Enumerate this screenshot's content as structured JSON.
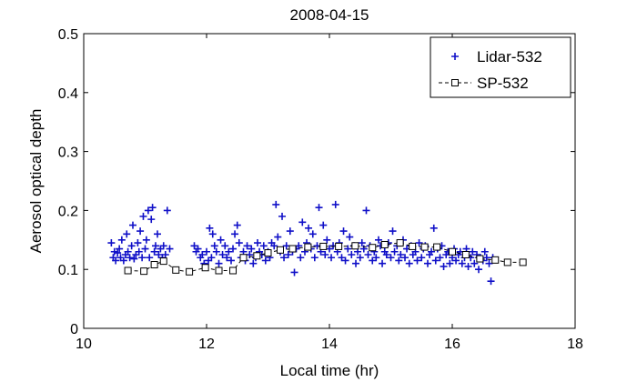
{
  "chart_data": {
    "type": "scatter",
    "title": "2008-04-15",
    "xlabel": "Local time (hr)",
    "ylabel": "Aerosol optical depth",
    "xlim": [
      10,
      18
    ],
    "ylim": [
      0,
      0.5
    ],
    "xticks": [
      10,
      12,
      14,
      16,
      18
    ],
    "yticks": [
      0,
      0.1,
      0.2,
      0.3,
      0.4,
      0.5
    ],
    "grid": false,
    "legend_position": "top-right",
    "colors": {
      "lidar": "#1010c8",
      "sp": "#000000"
    },
    "series": [
      {
        "name": "Lidar-532",
        "marker": "plus",
        "points": [
          [
            10.45,
            0.145
          ],
          [
            10.48,
            0.12
          ],
          [
            10.5,
            0.13
          ],
          [
            10.52,
            0.115
          ],
          [
            10.55,
            0.128
          ],
          [
            10.58,
            0.135
          ],
          [
            10.6,
            0.12
          ],
          [
            10.62,
            0.15
          ],
          [
            10.65,
            0.115
          ],
          [
            10.68,
            0.125
          ],
          [
            10.7,
            0.16
          ],
          [
            10.72,
            0.13
          ],
          [
            10.75,
            0.12
          ],
          [
            10.78,
            0.14
          ],
          [
            10.8,
            0.175
          ],
          [
            10.82,
            0.118
          ],
          [
            10.85,
            0.125
          ],
          [
            10.88,
            0.145
          ],
          [
            10.9,
            0.13
          ],
          [
            10.92,
            0.165
          ],
          [
            10.95,
            0.12
          ],
          [
            10.97,
            0.19
          ],
          [
            11.0,
            0.135
          ],
          [
            11.02,
            0.15
          ],
          [
            11.05,
            0.2
          ],
          [
            11.07,
            0.12
          ],
          [
            11.1,
            0.185
          ],
          [
            11.12,
            0.205
          ],
          [
            11.15,
            0.13
          ],
          [
            11.17,
            0.14
          ],
          [
            11.2,
            0.16
          ],
          [
            11.22,
            0.125
          ],
          [
            11.25,
            0.135
          ],
          [
            11.28,
            0.12
          ],
          [
            11.3,
            0.14
          ],
          [
            11.33,
            0.125
          ],
          [
            11.36,
            0.2
          ],
          [
            11.4,
            0.135
          ],
          [
            11.8,
            0.14
          ],
          [
            11.83,
            0.13
          ],
          [
            11.86,
            0.135
          ],
          [
            11.9,
            0.12
          ],
          [
            11.93,
            0.125
          ],
          [
            11.96,
            0.11
          ],
          [
            12.0,
            0.13
          ],
          [
            12.03,
            0.115
          ],
          [
            12.05,
            0.17
          ],
          [
            12.08,
            0.12
          ],
          [
            12.1,
            0.16
          ],
          [
            12.13,
            0.14
          ],
          [
            12.16,
            0.13
          ],
          [
            12.2,
            0.11
          ],
          [
            12.23,
            0.15
          ],
          [
            12.26,
            0.125
          ],
          [
            12.3,
            0.14
          ],
          [
            12.33,
            0.12
          ],
          [
            12.36,
            0.13
          ],
          [
            12.4,
            0.115
          ],
          [
            12.43,
            0.135
          ],
          [
            12.46,
            0.16
          ],
          [
            12.5,
            0.175
          ],
          [
            12.53,
            0.145
          ],
          [
            12.56,
            0.12
          ],
          [
            12.6,
            0.13
          ],
          [
            12.63,
            0.115
          ],
          [
            12.66,
            0.14
          ],
          [
            12.7,
            0.125
          ],
          [
            12.73,
            0.135
          ],
          [
            12.76,
            0.11
          ],
          [
            12.8,
            0.12
          ],
          [
            12.83,
            0.145
          ],
          [
            12.86,
            0.13
          ],
          [
            12.9,
            0.125
          ],
          [
            12.93,
            0.14
          ],
          [
            12.96,
            0.115
          ],
          [
            13.0,
            0.13
          ],
          [
            13.03,
            0.12
          ],
          [
            13.06,
            0.145
          ],
          [
            13.1,
            0.14
          ],
          [
            13.13,
            0.21
          ],
          [
            13.16,
            0.155
          ],
          [
            13.2,
            0.13
          ],
          [
            13.23,
            0.19
          ],
          [
            13.26,
            0.12
          ],
          [
            13.3,
            0.14
          ],
          [
            13.33,
            0.125
          ],
          [
            13.36,
            0.165
          ],
          [
            13.4,
            0.13
          ],
          [
            13.43,
            0.095
          ],
          [
            13.46,
            0.135
          ],
          [
            13.5,
            0.14
          ],
          [
            13.53,
            0.12
          ],
          [
            13.56,
            0.18
          ],
          [
            13.6,
            0.13
          ],
          [
            13.63,
            0.145
          ],
          [
            13.66,
            0.17
          ],
          [
            13.7,
            0.135
          ],
          [
            13.73,
            0.16
          ],
          [
            13.76,
            0.12
          ],
          [
            13.8,
            0.14
          ],
          [
            13.83,
            0.205
          ],
          [
            13.86,
            0.13
          ],
          [
            13.9,
            0.175
          ],
          [
            13.93,
            0.125
          ],
          [
            13.96,
            0.15
          ],
          [
            14.0,
            0.135
          ],
          [
            14.03,
            0.12
          ],
          [
            14.06,
            0.14
          ],
          [
            14.1,
            0.21
          ],
          [
            14.13,
            0.13
          ],
          [
            14.16,
            0.145
          ],
          [
            14.2,
            0.12
          ],
          [
            14.23,
            0.165
          ],
          [
            14.26,
            0.115
          ],
          [
            14.3,
            0.135
          ],
          [
            14.33,
            0.155
          ],
          [
            14.36,
            0.125
          ],
          [
            14.4,
            0.14
          ],
          [
            14.43,
            0.11
          ],
          [
            14.46,
            0.13
          ],
          [
            14.5,
            0.12
          ],
          [
            14.53,
            0.145
          ],
          [
            14.56,
            0.135
          ],
          [
            14.6,
            0.2
          ],
          [
            14.63,
            0.125
          ],
          [
            14.66,
            0.14
          ],
          [
            14.7,
            0.115
          ],
          [
            14.73,
            0.13
          ],
          [
            14.76,
            0.12
          ],
          [
            14.8,
            0.15
          ],
          [
            14.83,
            0.14
          ],
          [
            14.86,
            0.11
          ],
          [
            14.9,
            0.13
          ],
          [
            14.93,
            0.125
          ],
          [
            14.96,
            0.145
          ],
          [
            15.0,
            0.12
          ],
          [
            15.03,
            0.165
          ],
          [
            15.06,
            0.13
          ],
          [
            15.1,
            0.14
          ],
          [
            15.13,
            0.115
          ],
          [
            15.16,
            0.125
          ],
          [
            15.2,
            0.15
          ],
          [
            15.23,
            0.12
          ],
          [
            15.26,
            0.135
          ],
          [
            15.3,
            0.11
          ],
          [
            15.33,
            0.14
          ],
          [
            15.36,
            0.125
          ],
          [
            15.4,
            0.13
          ],
          [
            15.43,
            0.115
          ],
          [
            15.46,
            0.145
          ],
          [
            15.5,
            0.12
          ],
          [
            15.53,
            0.135
          ],
          [
            15.56,
            0.14
          ],
          [
            15.6,
            0.11
          ],
          [
            15.63,
            0.125
          ],
          [
            15.66,
            0.13
          ],
          [
            15.7,
            0.17
          ],
          [
            15.73,
            0.115
          ],
          [
            15.76,
            0.135
          ],
          [
            15.8,
            0.12
          ],
          [
            15.83,
            0.14
          ],
          [
            15.86,
            0.105
          ],
          [
            15.9,
            0.125
          ],
          [
            15.93,
            0.13
          ],
          [
            15.96,
            0.11
          ],
          [
            16.0,
            0.12
          ],
          [
            16.03,
            0.135
          ],
          [
            16.06,
            0.115
          ],
          [
            16.1,
            0.125
          ],
          [
            16.13,
            0.13
          ],
          [
            16.16,
            0.11
          ],
          [
            16.2,
            0.12
          ],
          [
            16.23,
            0.135
          ],
          [
            16.26,
            0.105
          ],
          [
            16.3,
            0.12
          ],
          [
            16.33,
            0.13
          ],
          [
            16.36,
            0.11
          ],
          [
            16.4,
            0.125
          ],
          [
            16.43,
            0.1
          ],
          [
            16.46,
            0.12
          ],
          [
            16.5,
            0.115
          ],
          [
            16.53,
            0.13
          ],
          [
            16.56,
            0.12
          ],
          [
            16.6,
            0.11
          ],
          [
            16.63,
            0.08
          ],
          [
            16.66,
            0.12
          ]
        ]
      },
      {
        "name": "SP-532",
        "marker": "square",
        "line": "dashed",
        "points": [
          [
            10.72,
            0.098
          ],
          [
            10.98,
            0.097
          ],
          [
            11.15,
            0.108
          ],
          [
            11.3,
            0.114
          ],
          [
            11.5,
            0.099
          ],
          [
            11.72,
            0.096
          ],
          [
            11.98,
            0.103
          ],
          [
            12.2,
            0.098
          ],
          [
            12.43,
            0.098
          ],
          [
            12.6,
            0.12
          ],
          [
            12.82,
            0.123
          ],
          [
            13.0,
            0.128
          ],
          [
            13.2,
            0.133
          ],
          [
            13.4,
            0.135
          ],
          [
            13.65,
            0.138
          ],
          [
            13.9,
            0.139
          ],
          [
            14.15,
            0.139
          ],
          [
            14.42,
            0.14
          ],
          [
            14.7,
            0.137
          ],
          [
            14.9,
            0.142
          ],
          [
            15.15,
            0.145
          ],
          [
            15.35,
            0.139
          ],
          [
            15.55,
            0.138
          ],
          [
            15.75,
            0.138
          ],
          [
            16.0,
            0.13
          ],
          [
            16.22,
            0.125
          ],
          [
            16.45,
            0.118
          ],
          [
            16.7,
            0.116
          ],
          [
            16.9,
            0.112
          ],
          [
            17.15,
            0.112
          ]
        ]
      }
    ]
  }
}
